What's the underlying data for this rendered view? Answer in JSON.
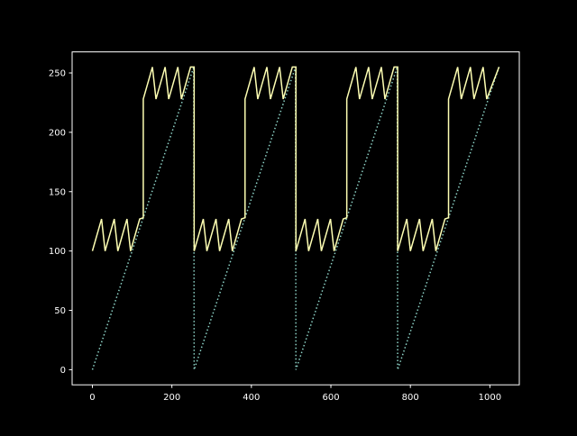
{
  "chart_data": {
    "type": "line",
    "title": "",
    "xlabel": "",
    "ylabel": "",
    "xlim": [
      -51,
      1074
    ],
    "ylim": [
      -12.75,
      267.75
    ],
    "xticks": [
      0,
      200,
      400,
      600,
      800,
      1000
    ],
    "yticks": [
      0,
      50,
      100,
      150,
      200,
      250
    ],
    "grid": false,
    "background": "#000000",
    "series": [
      {
        "style": "dotted",
        "color": "#8dd3c7",
        "points": [
          [
            0,
            0
          ],
          [
            255,
            255
          ],
          [
            256,
            0
          ],
          [
            511,
            255
          ],
          [
            512,
            0
          ],
          [
            767,
            255
          ],
          [
            768,
            0
          ],
          [
            1023,
            255
          ]
        ]
      },
      {
        "style": "solid",
        "color": "#feffb3",
        "points": [
          [
            0,
            100
          ],
          [
            23,
            127
          ],
          [
            32,
            100
          ],
          [
            55,
            127
          ],
          [
            64,
            100
          ],
          [
            87,
            127
          ],
          [
            96,
            100
          ],
          [
            119,
            127
          ],
          [
            128,
            128
          ],
          [
            128,
            228
          ],
          [
            151,
            255
          ],
          [
            160,
            228
          ],
          [
            183,
            255
          ],
          [
            192,
            228
          ],
          [
            215,
            255
          ],
          [
            224,
            228
          ],
          [
            247,
            255
          ],
          [
            256,
            255
          ],
          [
            256,
            100
          ],
          [
            279,
            127
          ],
          [
            288,
            100
          ],
          [
            311,
            127
          ],
          [
            320,
            100
          ],
          [
            343,
            127
          ],
          [
            352,
            100
          ],
          [
            375,
            127
          ],
          [
            384,
            128
          ],
          [
            384,
            228
          ],
          [
            407,
            255
          ],
          [
            416,
            228
          ],
          [
            439,
            255
          ],
          [
            448,
            228
          ],
          [
            471,
            255
          ],
          [
            480,
            228
          ],
          [
            503,
            255
          ],
          [
            512,
            255
          ],
          [
            512,
            100
          ],
          [
            535,
            127
          ],
          [
            544,
            100
          ],
          [
            567,
            127
          ],
          [
            576,
            100
          ],
          [
            599,
            127
          ],
          [
            608,
            100
          ],
          [
            631,
            127
          ],
          [
            640,
            128
          ],
          [
            640,
            228
          ],
          [
            663,
            255
          ],
          [
            672,
            228
          ],
          [
            695,
            255
          ],
          [
            704,
            228
          ],
          [
            727,
            255
          ],
          [
            736,
            228
          ],
          [
            759,
            255
          ],
          [
            768,
            255
          ],
          [
            768,
            100
          ],
          [
            791,
            127
          ],
          [
            800,
            100
          ],
          [
            823,
            127
          ],
          [
            832,
            100
          ],
          [
            855,
            127
          ],
          [
            864,
            100
          ],
          [
            887,
            127
          ],
          [
            896,
            128
          ],
          [
            896,
            228
          ],
          [
            919,
            255
          ],
          [
            928,
            228
          ],
          [
            951,
            255
          ],
          [
            960,
            228
          ],
          [
            983,
            255
          ],
          [
            992,
            228
          ],
          [
            1023,
            255
          ]
        ]
      }
    ]
  }
}
